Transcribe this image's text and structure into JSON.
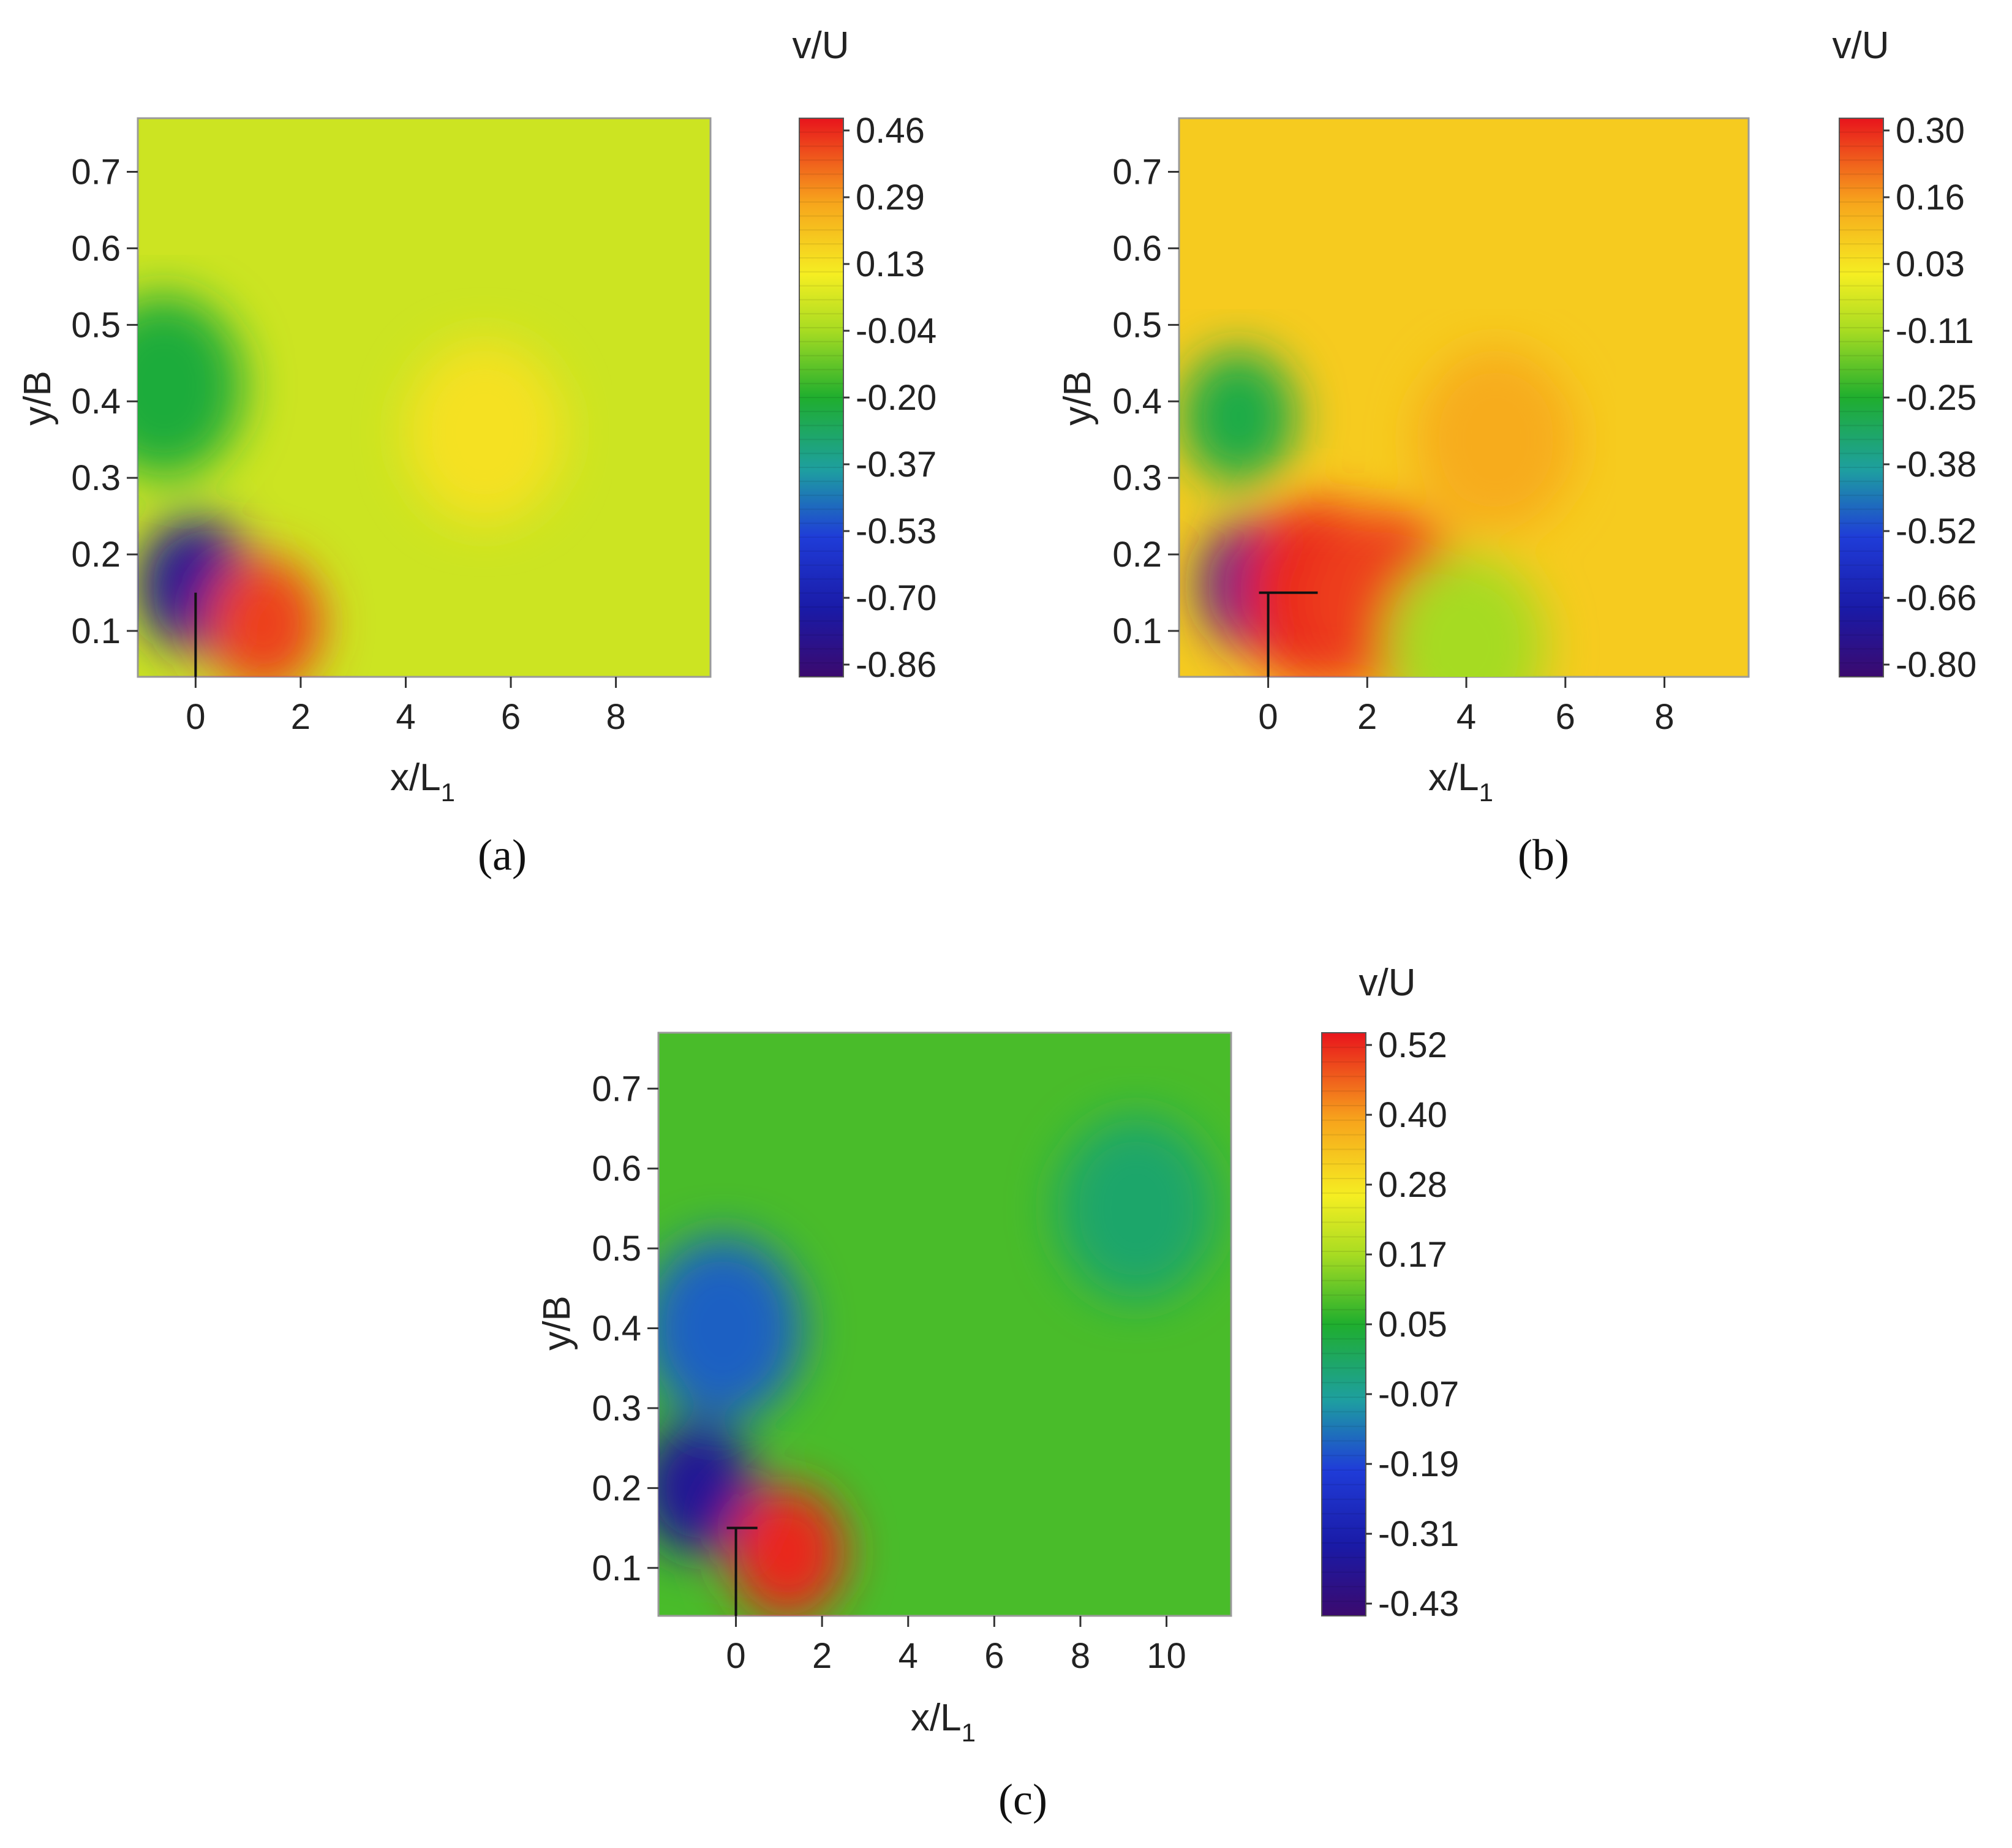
{
  "chart_data": [
    {
      "type": "heatmap",
      "panel": "(a)",
      "quantity": "v/U",
      "xlabel": "x/L",
      "xlabel_sub": "1",
      "ylabel": "y/B",
      "xlim": [
        -1.1,
        9.8
      ],
      "ylim": [
        0.04,
        0.77
      ],
      "xticks": [
        "0",
        "2",
        "4",
        "6",
        "8"
      ],
      "yticks": [
        "0.1",
        "0.2",
        "0.3",
        "0.4",
        "0.5",
        "0.6",
        "0.7"
      ],
      "colorbar_ticks": [
        "0.46",
        "0.29",
        "0.13",
        "-0.04",
        "-0.20",
        "-0.37",
        "-0.53",
        "-0.70",
        "-0.86"
      ],
      "colorbar_range": [
        -0.86,
        0.46
      ],
      "field_features": [
        {
          "x": 0.0,
          "y": 0.16,
          "value": -0.75,
          "region": "blue recirculation near plate"
        },
        {
          "x": 1.3,
          "y": 0.11,
          "value": 0.4,
          "region": "red core downstream of plate"
        },
        {
          "x": -0.6,
          "y": 0.42,
          "value": -0.22,
          "region": "green zone upstream"
        },
        {
          "x": 5.5,
          "y": 0.36,
          "value": 0.12,
          "region": "light orange patch"
        }
      ],
      "background_value": 0.02,
      "plate": {
        "x": 0.0,
        "y_top": 0.15
      }
    },
    {
      "type": "heatmap",
      "panel": "(b)",
      "quantity": "v/U",
      "xlabel": "x/L",
      "xlabel_sub": "1",
      "ylabel": "y/B",
      "xlim": [
        -1.8,
        9.7
      ],
      "ylim": [
        0.04,
        0.77
      ],
      "xticks": [
        "0",
        "2",
        "4",
        "6",
        "8"
      ],
      "yticks": [
        "0.1",
        "0.2",
        "0.3",
        "0.4",
        "0.5",
        "0.6",
        "0.7"
      ],
      "colorbar_ticks": [
        "0.30",
        "0.16",
        "0.03",
        "-0.11",
        "-0.25",
        "-0.38",
        "-0.52",
        "-0.66",
        "-0.80"
      ],
      "colorbar_range": [
        -0.8,
        0.3
      ],
      "field_features": [
        {
          "x": -0.2,
          "y": 0.16,
          "value": -0.7,
          "region": "blue vortex behind plate"
        },
        {
          "x": -0.6,
          "y": 0.38,
          "value": -0.28,
          "region": "green upstream cell"
        },
        {
          "x": 1.0,
          "y": 0.15,
          "value": 0.28,
          "region": "red streak"
        },
        {
          "x": 2.4,
          "y": 0.14,
          "value": 0.25,
          "region": "red streak"
        },
        {
          "x": 4.6,
          "y": 0.35,
          "value": 0.12,
          "region": "orange diagonal band"
        },
        {
          "x": 4.0,
          "y": 0.08,
          "value": -0.12,
          "region": "yellow-green wedge"
        }
      ],
      "background_value": 0.06,
      "plate": {
        "x": 0.0,
        "y_top": 0.15,
        "arm_to_x": 1.0
      }
    },
    {
      "type": "heatmap",
      "panel": "(c)",
      "quantity": "v/U",
      "xlabel": "x/L",
      "xlabel_sub": "1",
      "ylabel": "y/B",
      "xlim": [
        -1.8,
        11.5
      ],
      "ylim": [
        0.04,
        0.77
      ],
      "xticks": [
        "0",
        "2",
        "4",
        "6",
        "8",
        "10"
      ],
      "yticks": [
        "0.1",
        "0.2",
        "0.3",
        "0.4",
        "0.5",
        "0.6",
        "0.7"
      ],
      "colorbar_ticks": [
        "0.52",
        "0.40",
        "0.28",
        "0.17",
        "0.05",
        "-0.07",
        "-0.19",
        "-0.31",
        "-0.43"
      ],
      "colorbar_range": [
        -0.43,
        0.52
      ],
      "field_features": [
        {
          "x": -0.3,
          "y": 0.4,
          "value": -0.15,
          "region": "blue column upstream"
        },
        {
          "x": -0.9,
          "y": 0.2,
          "value": -0.35,
          "region": "purple core"
        },
        {
          "x": 1.2,
          "y": 0.12,
          "value": 0.5,
          "region": "red jet downstream of plate"
        },
        {
          "x": 9.3,
          "y": 0.55,
          "value": -0.02,
          "region": "darker green patch"
        }
      ],
      "background_value": 0.08,
      "plate": {
        "x": 0.0,
        "y_top": 0.15,
        "arm_to_x": 0.5
      }
    }
  ]
}
